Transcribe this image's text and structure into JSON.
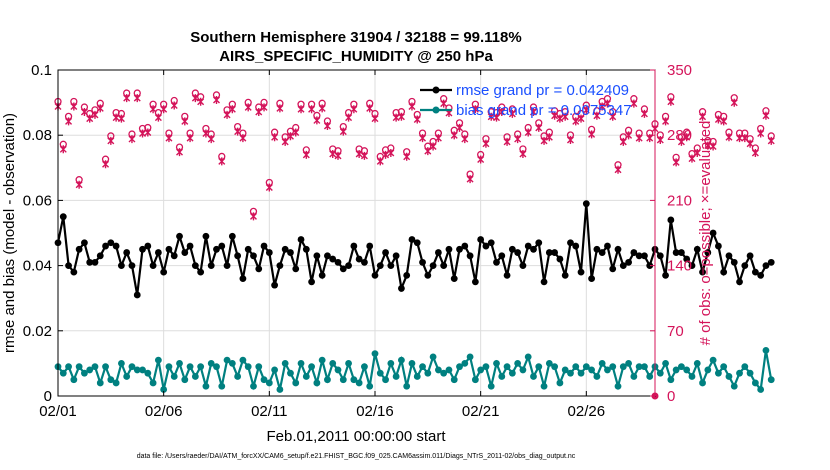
{
  "chart_data": {
    "type": "line",
    "title": "Southern Hemisphere 31904 / 32188 = 99.118%",
    "subtitle": "AIRS_SPECIFIC_HUMIDITY @ 250 hPa",
    "xlabel": "Feb.01,2011 00:00:00 start",
    "ylabel": "rmse and bias (model - observation)",
    "ylabel_right": "# of obs: o=possible; ×=evaluated",
    "footnote": "data file: /Users/raeder/DAI/ATM_forcXX/CAM6_setup/f.e21.FHIST_BGC.f09_025.CAM6assim.011/Diags_NTrS_2011-02/obs_diag_output.nc",
    "xlim": [
      0,
      28.25
    ],
    "ylim": [
      0,
      0.1
    ],
    "ylim_right": [
      0,
      350
    ],
    "x_tick_labels": [
      "02/01",
      "02/06",
      "02/11",
      "02/16",
      "02/21",
      "02/26"
    ],
    "x_tick_values": [
      0,
      5,
      10,
      15,
      20,
      25
    ],
    "y_tick_labels": [
      "0",
      "0.02",
      "0.04",
      "0.06",
      "0.08",
      "0.1"
    ],
    "y_tick_values": [
      0,
      0.02,
      0.04,
      0.06,
      0.08,
      0.1
    ],
    "y_right_tick_labels": [
      "0",
      "70",
      "140",
      "210",
      "280",
      "350"
    ],
    "y_right_tick_values": [
      0,
      70,
      140,
      210,
      280,
      350
    ],
    "grid": true,
    "legend_position": "top-right",
    "legend": [
      {
        "label": "rmse grand pr = 0.042409",
        "color": "#000000"
      },
      {
        "label": "bias grand pr = 0.0075347",
        "color": "#008080"
      }
    ],
    "x_step": 0.25,
    "series": [
      {
        "name": "rmse",
        "color": "#000000",
        "values": [
          0.047,
          0.055,
          0.04,
          0.038,
          0.045,
          0.047,
          0.041,
          0.041,
          0.043,
          0.046,
          0.047,
          0.046,
          0.04,
          0.044,
          0.04,
          0.031,
          0.045,
          0.046,
          0.04,
          0.044,
          0.038,
          0.045,
          0.043,
          0.049,
          0.044,
          0.046,
          0.04,
          0.038,
          0.049,
          0.04,
          0.045,
          0.046,
          0.04,
          0.049,
          0.043,
          0.036,
          0.045,
          0.043,
          0.039,
          0.046,
          0.044,
          0.034,
          0.04,
          0.045,
          0.044,
          0.039,
          0.048,
          0.045,
          0.035,
          0.043,
          0.037,
          0.043,
          0.042,
          0.041,
          0.039,
          0.04,
          0.046,
          0.042,
          0.041,
          0.046,
          0.037,
          0.04,
          0.044,
          0.04,
          0.043,
          0.033,
          0.037,
          0.048,
          0.047,
          0.041,
          0.037,
          0.04,
          0.044,
          0.04,
          0.045,
          0.036,
          0.045,
          0.046,
          0.043,
          0.035,
          0.048,
          0.046,
          0.047,
          0.041,
          0.043,
          0.037,
          0.045,
          0.044,
          0.04,
          0.046,
          0.045,
          0.047,
          0.035,
          0.044,
          0.044,
          0.042,
          0.037,
          0.047,
          0.046,
          0.038,
          0.059,
          0.036,
          0.045,
          0.044,
          0.046,
          0.039,
          0.045,
          0.04,
          0.041,
          0.044,
          0.043,
          0.043,
          0.04,
          0.045,
          0.043,
          0.037,
          0.054,
          0.044,
          0.044,
          0.042,
          0.04,
          0.045,
          0.038,
          0.044,
          0.05,
          0.046,
          0.038,
          0.043,
          0.041,
          0.035,
          0.04,
          0.043,
          0.038,
          0.037,
          0.04,
          0.041
        ]
      },
      {
        "name": "bias",
        "color": "#008080",
        "values": [
          0.009,
          0.007,
          0.009,
          0.005,
          0.009,
          0.007,
          0.008,
          0.009,
          0.004,
          0.009,
          0.005,
          0.004,
          0.01,
          0.006,
          0.009,
          0.008,
          0.008,
          0.007,
          0.004,
          0.011,
          0.002,
          0.009,
          0.006,
          0.01,
          0.005,
          0.009,
          0.006,
          0.009,
          0.003,
          0.01,
          0.009,
          0.003,
          0.011,
          0.01,
          0.006,
          0.011,
          0.009,
          0.003,
          0.009,
          0.005,
          0.004,
          0.008,
          0.002,
          0.01,
          0.007,
          0.004,
          0.01,
          0.006,
          0.009,
          0.004,
          0.011,
          0.005,
          0.01,
          0.008,
          0.005,
          0.01,
          0.005,
          0.004,
          0.009,
          0.003,
          0.013,
          0.007,
          0.005,
          0.01,
          0.006,
          0.011,
          0.003,
          0.01,
          0.006,
          0.009,
          0.007,
          0.012,
          0.008,
          0.007,
          0.008,
          0.005,
          0.009,
          0.01,
          0.012,
          0.005,
          0.008,
          0.009,
          0.003,
          0.01,
          0.006,
          0.009,
          0.007,
          0.01,
          0.008,
          0.012,
          0.006,
          0.009,
          0.003,
          0.01,
          0.009,
          0.004,
          0.008,
          0.007,
          0.009,
          0.007,
          0.009,
          0.008,
          0.006,
          0.01,
          0.008,
          0.009,
          0.003,
          0.009,
          0.01,
          0.006,
          0.009,
          0.009,
          0.006,
          0.009,
          0.007,
          0.01,
          0.005,
          0.008,
          0.009,
          0.008,
          0.006,
          0.01,
          0.004,
          0.008,
          0.011,
          0.007,
          0.009,
          0.006,
          0.003,
          0.007,
          0.009,
          0.007,
          0.004,
          0.002,
          0.014,
          0.005
        ]
      },
      {
        "name": "# obs possible",
        "color": "#d4145a",
        "axis": "right",
        "marker": "o",
        "values": [
          313,
          267,
          297,
          313,
          229,
          307,
          300,
          304,
          311,
          251,
          276,
          301,
          300,
          322,
          278,
          322,
          284,
          285,
          310,
          301,
          310,
          279,
          314,
          264,
          297,
          279,
          322,
          318,
          284,
          278,
          320,
          254,
          304,
          310,
          286,
          279,
          312,
          195,
          307,
          312,
          226,
          280,
          311,
          275,
          281,
          285,
          310,
          261,
          310,
          298,
          311,
          292,
          262,
          260,
          286,
          301,
          310,
          262,
          260,
          311,
          300,
          254,
          261,
          263,
          301,
          302,
          259,
          313,
          299,
          279,
          265,
          270,
          279,
          316,
          306,
          282,
          290,
          278,
          235,
          310,
          256,
          273,
          302,
          301,
          307,
          275,
          305,
          278,
          262,
          285,
          307,
          290,
          276,
          280,
          303,
          300,
          302,
          277,
          297,
          300,
          309,
          283,
          303,
          313,
          316,
          302,
          245,
          275,
          282,
          316,
          279,
          305,
          279,
          289,
          277,
          297,
          318,
          253,
          275,
          280,
          257,
          263,
          302,
          271,
          270,
          299,
          297,
          280,
          317,
          279,
          279,
          273,
          263,
          284,
          303,
          276
        ]
      },
      {
        "name": "# obs evaluated",
        "color": "#d4145a",
        "axis": "right",
        "marker": "x",
        "values": [
          313,
          267,
          297,
          313,
          229,
          307,
          300,
          304,
          311,
          251,
          276,
          301,
          300,
          322,
          278,
          322,
          284,
          285,
          310,
          301,
          310,
          279,
          314,
          264,
          297,
          279,
          322,
          318,
          284,
          278,
          320,
          254,
          304,
          310,
          286,
          279,
          312,
          195,
          307,
          312,
          226,
          280,
          311,
          275,
          281,
          285,
          310,
          261,
          310,
          298,
          311,
          292,
          262,
          260,
          286,
          301,
          310,
          262,
          260,
          311,
          300,
          254,
          261,
          263,
          301,
          302,
          259,
          313,
          299,
          279,
          265,
          270,
          279,
          316,
          306,
          282,
          290,
          278,
          235,
          310,
          256,
          273,
          302,
          301,
          307,
          275,
          305,
          278,
          262,
          285,
          307,
          290,
          276,
          280,
          303,
          300,
          302,
          277,
          297,
          300,
          309,
          283,
          303,
          313,
          316,
          302,
          245,
          275,
          282,
          316,
          279,
          305,
          279,
          289,
          277,
          297,
          318,
          253,
          275,
          280,
          257,
          263,
          302,
          271,
          270,
          299,
          297,
          280,
          317,
          279,
          279,
          273,
          263,
          284,
          303,
          276
        ]
      }
    ]
  }
}
